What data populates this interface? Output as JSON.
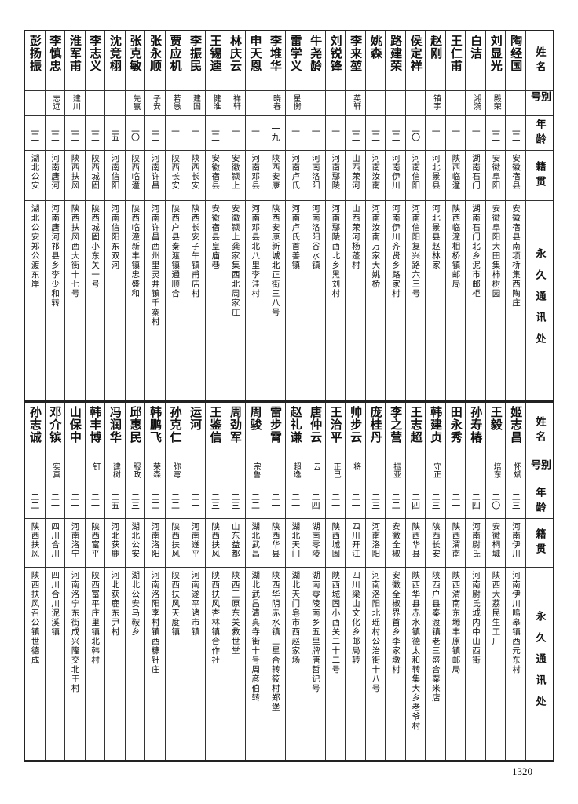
{
  "headers": [
    "姓名",
    "别号",
    "年龄",
    "籍贯",
    "永久通讯处"
  ],
  "tables": [
    {
      "rows": [
        {
          "name": "陶经国",
          "alias": "",
          "age": "二三",
          "native": "安徽宿县",
          "address": "安徽宿县南项桥集西陶庄"
        },
        {
          "name": "刘显光",
          "alias": "殿荣",
          "age": "二三",
          "native": "安徽阜阳",
          "address": "安徽阜阳大田集柿树园"
        },
        {
          "name": "白洁",
          "alias": "湘漪",
          "age": "二一",
          "native": "湖南石门",
          "address": "湖南石门北乡泥市邮柜"
        },
        {
          "name": "王仁甫",
          "alias": "",
          "age": "二一",
          "native": "陕西临潼",
          "address": "陕西临潼相桥镇邮局"
        },
        {
          "name": "赵刚",
          "alias": "镇宇",
          "age": "二一",
          "native": "河北景县",
          "address": "河北景县赵林家"
        },
        {
          "name": "侯定祥",
          "alias": "",
          "age": "二〇",
          "native": "河南信阳",
          "address": "河南信阳复兴路六三号"
        },
        {
          "name": "路建荣",
          "alias": "",
          "age": "二三",
          "native": "河南伊川",
          "address": "河南伊川齐贤乡路家村"
        },
        {
          "name": "姚森",
          "alias": "",
          "age": "二三",
          "native": "河南汝南",
          "address": "河南汝南万家大姚桥"
        },
        {
          "name": "李来堃",
          "alias": "英轩",
          "age": "二三",
          "native": "山西荣河",
          "address": "山西荣河杨蓬村"
        },
        {
          "name": "刘锐锋",
          "alias": "",
          "age": "二一",
          "native": "河南鄢陵",
          "address": "河南鄢陵西北乡黑刘村"
        },
        {
          "name": "牛尧龄",
          "alias": "",
          "age": "二一",
          "native": "河南洛阳",
          "address": "河南洛阳谷水镇"
        },
        {
          "name": "雷学义",
          "alias": "星衡",
          "age": "二一",
          "native": "河南卢氏",
          "address": "河南卢氏首善镇"
        },
        {
          "name": "李堆华",
          "alias": "晓春",
          "age": "一九",
          "native": "陕西安康",
          "address": "陕西安康新城北正街三八号"
        },
        {
          "name": "申天恩",
          "alias": "",
          "age": "二一",
          "native": "河南邓县",
          "address": "河南邓县北八里李洼村"
        },
        {
          "name": "林庆云",
          "alias": "祥轩",
          "age": "二一",
          "native": "安徽颍上",
          "address": "安徽颍上龚家集西北周家庄"
        },
        {
          "name": "王锡逵",
          "alias": "健淮",
          "age": "二三",
          "native": "安徽宿县",
          "address": "安徽宿县皇庙巷"
        },
        {
          "name": "李振民",
          "alias": "建国",
          "age": "二一",
          "native": "陕西长安",
          "address": "陕西长安子午镇甫店村"
        },
        {
          "name": "贾应机",
          "alias": "若愚",
          "age": "二一",
          "native": "陕西长安",
          "address": "陕西户县秦渡镇通顺合"
        },
        {
          "name": "张永顺",
          "alias": "子安",
          "age": "二三",
          "native": "河南许昌",
          "address": "河南许昌西州里灵井镇千寨村"
        },
        {
          "name": "张克敏",
          "alias": "先赢",
          "age": "二〇",
          "native": "陕西临潼",
          "address": "陕西临潼新丰镇忠盛和"
        },
        {
          "name": "沈竞栩",
          "alias": "",
          "age": "二五",
          "native": "河南信阳",
          "address": "河南信阳东双河"
        },
        {
          "name": "李志义",
          "alias": "",
          "age": "二三",
          "native": "陕西城固",
          "address": "陕西城固小东关一号"
        },
        {
          "name": "淮军甫",
          "alias": "建川",
          "age": "二三",
          "native": "陕西扶风",
          "address": "陕西扶风西大街十七号"
        },
        {
          "name": "李慎忠",
          "alias": "志远",
          "age": "二三",
          "native": "河南唐河",
          "address": "河南唐河祁县乡李少和转"
        },
        {
          "name": "彭扬振",
          "alias": "",
          "age": "二三",
          "native": "湖北公安",
          "address": "湖北公安郑公渡东岸"
        }
      ]
    },
    {
      "rows": [
        {
          "name": "姬志昌",
          "alias": "怀斌",
          "age": "二三",
          "native": "河南伊川",
          "address": "河南伊川鸣皋镇西元东村"
        },
        {
          "name": "王毅",
          "alias": "培东",
          "age": "二〇",
          "native": "安徽桐城",
          "address": "陕西大荔民生工厂"
        },
        {
          "name": "孙寿椿",
          "alias": "",
          "age": "二四",
          "native": "河南尉氏",
          "address": "河南尉氏城内中山西街"
        },
        {
          "name": "田永秀",
          "alias": "",
          "age": "二一",
          "native": "陕西渭南",
          "address": "陕西渭南东塬丰原镇邮局"
        },
        {
          "name": "韩建贞",
          "alias": "守正",
          "age": "二三",
          "native": "陕西长安",
          "address": "陕西户县秦渡镇老三盛合粟米店"
        },
        {
          "name": "王志超",
          "alias": "",
          "age": "二四",
          "native": "陕西华县",
          "address": "陕西华县赤水镇德太和转集大乡老爷村"
        },
        {
          "name": "李之营",
          "alias": "振亚",
          "age": "二二",
          "native": "安徽全椒",
          "address": "安徽全椒界首乡李家墩村"
        },
        {
          "name": "庞桂丹",
          "alias": "",
          "age": "二三",
          "native": "河南洛阳",
          "address": "河南洛阳北瑶村公治街十八号"
        },
        {
          "name": "帅步云",
          "alias": "将",
          "age": "二一",
          "native": "四川开江",
          "address": "四川梁山文化乡邮局转"
        },
        {
          "name": "王治平",
          "alias": "正己",
          "age": "二一",
          "native": "陕西城固",
          "address": "陕西城固小西关二十二号"
        },
        {
          "name": "唐仲云",
          "alias": "云",
          "age": "二四",
          "native": "湖南零陵",
          "address": "湖南零陵南乡五里牌唐哲记号"
        },
        {
          "name": "赵礼谦",
          "alias": "超逸",
          "age": "二一",
          "native": "湖北天门",
          "address": "湖北天门皂市西赵家场"
        },
        {
          "name": "雷步霄",
          "alias": "",
          "age": "二一",
          "native": "陕西华县",
          "address": "陕西华阴赤水镇三星合转筱村郑堡"
        },
        {
          "name": "周骏",
          "alias": "宗鲁",
          "age": "二二",
          "native": "湖北武昌",
          "address": "湖北武昌清真寺街十号周彦伯转"
        },
        {
          "name": "周劲军",
          "alias": "",
          "age": "二三",
          "native": "山东益都",
          "address": "陕西三原东关救世堂"
        },
        {
          "name": "王鉴信",
          "alias": "",
          "age": "二三",
          "native": "陕西扶风",
          "address": "陕西扶风杏林镇合作社"
        },
        {
          "name": "运河",
          "alias": "",
          "age": "二一",
          "native": "河南遂平",
          "address": "河南遂平诸市镇"
        },
        {
          "name": "孙克仁",
          "alias": "弥穹",
          "age": "二二",
          "native": "陕西扶风",
          "address": "陕西扶风天度镇"
        },
        {
          "name": "韩鹏飞",
          "alias": "荣森",
          "age": "二二",
          "native": "河南洛阳",
          "address": "河南洛阳李村镇西糠针庄"
        },
        {
          "name": "邱惠民",
          "alias": "服政",
          "age": "二三",
          "native": "湖北公安",
          "address": "湖北公安马鞍乡"
        },
        {
          "name": "冯润华",
          "alias": "建树",
          "age": "二五",
          "native": "河北获鹿",
          "address": "河北获鹿东尹村"
        },
        {
          "name": "韩丰博",
          "alias": "钉",
          "age": "二一",
          "native": "陕西富平",
          "address": "陕西富平庄里镇北韩村"
        },
        {
          "name": "山保中",
          "alias": "",
          "age": "二一",
          "native": "河南洛宁",
          "address": "河南洛宁东街成兴隆交北王村"
        },
        {
          "name": "邓介镔",
          "alias": "实真",
          "age": "二一",
          "native": "四川合川",
          "address": "四川合川泥溪镇"
        },
        {
          "name": "孙志诚",
          "alias": "",
          "age": "二二",
          "native": "陕西扶风",
          "address": "陕西扶风召公镇世德成"
        }
      ]
    }
  ],
  "page_number": "1320"
}
